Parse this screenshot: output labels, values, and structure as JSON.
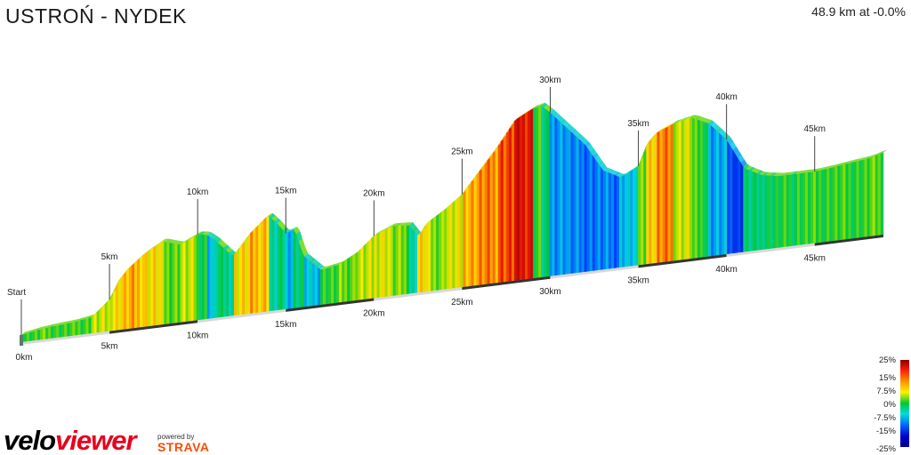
{
  "header": {
    "title": "USTROŃ - NYDEK",
    "summary": "48.9 km at -0.0%"
  },
  "chart_data": {
    "type": "area",
    "title": "USTROŃ - NYDEK",
    "xlabel": "",
    "ylabel": "",
    "x_unit": "km",
    "xlim": [
      0,
      48.9
    ],
    "distance_km": [
      0,
      1,
      2,
      3,
      4,
      5,
      5.5,
      6,
      7,
      8,
      9,
      10,
      10.5,
      11,
      12,
      13,
      14,
      14.5,
      15,
      15.5,
      16,
      17,
      18,
      19,
      20,
      21,
      22,
      22.5,
      23,
      24,
      25,
      26,
      27,
      28,
      29,
      29.5,
      30,
      31,
      32,
      33,
      34,
      35,
      35.5,
      36,
      37,
      38,
      39,
      40,
      40.5,
      41,
      42,
      43,
      44,
      45,
      46,
      47,
      48,
      48.9
    ],
    "relative_height": [
      0,
      5,
      8,
      10,
      15,
      40,
      68,
      85,
      108,
      124,
      115,
      128,
      126,
      115,
      85,
      120,
      145,
      130,
      112,
      117,
      72,
      45,
      50,
      65,
      90,
      102,
      100,
      80,
      100,
      118,
      140,
      175,
      210,
      250,
      265,
      268,
      255,
      225,
      195,
      150,
      135,
      150,
      185,
      200,
      212,
      218,
      205,
      175,
      150,
      125,
      110,
      105,
      105,
      105,
      108,
      112,
      115,
      122
    ],
    "grade_percent": [
      1,
      2,
      1,
      2,
      5,
      8,
      9,
      10,
      8,
      3,
      5,
      0,
      -8,
      -3,
      8,
      10,
      -5,
      -3,
      -8,
      -2,
      -8,
      1,
      3,
      5,
      7,
      3,
      -5,
      8,
      4,
      6,
      11,
      12,
      15,
      18,
      1,
      -3,
      -10,
      -12,
      -12,
      -12,
      -8,
      4,
      9,
      12,
      6,
      1,
      -10,
      -14,
      -16,
      -3,
      -1,
      0,
      1,
      1,
      1,
      1,
      2,
      2
    ],
    "markers": [
      {
        "label": "Start",
        "km": 0
      },
      {
        "label": "5km",
        "km": 5
      },
      {
        "label": "10km",
        "km": 10
      },
      {
        "label": "15km",
        "km": 15
      },
      {
        "label": "20km",
        "km": 20
      },
      {
        "label": "25km",
        "km": 25
      },
      {
        "label": "30km",
        "km": 30
      },
      {
        "label": "35km",
        "km": 35
      },
      {
        "label": "40km",
        "km": 40
      },
      {
        "label": "45km",
        "km": 45
      }
    ],
    "base_ticks": [
      "0km",
      "5km",
      "10km",
      "15km",
      "20km",
      "25km",
      "30km",
      "35km",
      "40km",
      "45km"
    ],
    "grade_scale": [
      "25%",
      "15%",
      "7.5%",
      "0%",
      "-7.5%",
      "-15%",
      "-25%"
    ],
    "grade_colors": [
      "#00008b",
      "#0064ff",
      "#00dcdc",
      "#00c832",
      "#8cdc00",
      "#fff000",
      "#ff9600",
      "#ff1e00",
      "#8b0000"
    ]
  },
  "branding": {
    "logo_velo": "velo",
    "logo_viewer": "viewer",
    "powered_by": "powered by",
    "strava": "STRAVA"
  }
}
